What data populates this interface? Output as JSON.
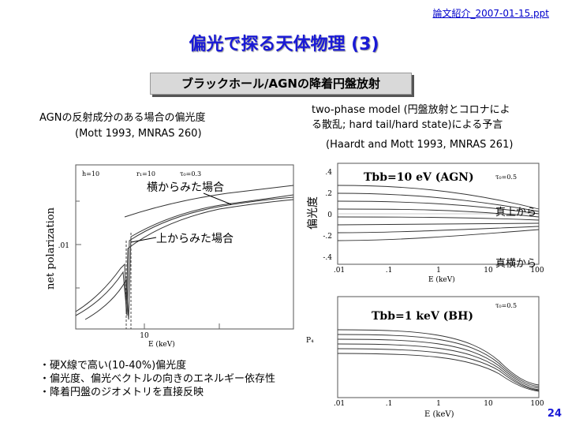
{
  "header": {
    "file_label": "論文紹介_2007-01-15.ppt"
  },
  "slide": {
    "title": "偏光で探る天体物理 (3)",
    "subtitle": "ブラックホール/AGNの降着円盤放射",
    "left_caption": "AGNの反射成分のある場合の偏光度",
    "left_ref": "(Mott 1993, MNRAS 260)",
    "right_caption_line1": "two-phase model (円盤放射とコロナによ",
    "right_caption_line2": "る散乱; hard tail/hard state)による予言",
    "right_ref": "(Haardt and Mott 1993, MNRAS 261)",
    "page_number": "24"
  },
  "left_figure": {
    "ylabel": "net polarization",
    "params": [
      "h=10",
      "r₁=10",
      "τ₀=0.3"
    ],
    "ytick": ".01",
    "xtick": "10",
    "xlabel": "E (keV)",
    "annotation_side": "横からみた場合",
    "annotation_top": "上からみた場合"
  },
  "right_top_figure": {
    "label": "Tbb=10 eV (AGN)",
    "param": "τ₀=0.5",
    "ylabel": "偏光度",
    "yticks": [
      ".4",
      ".2",
      "0",
      "-.2",
      "-.4"
    ],
    "xticks": [
      ".01",
      ".1",
      "1",
      "10",
      "100"
    ],
    "xlabel": "E (keV)",
    "annotation_top": "真上から",
    "annotation_side": "真横から"
  },
  "right_bottom_figure": {
    "label": "Tbb=1 keV (BH)",
    "param": "τ₀=0.5",
    "yaxis_fragment": "P₄",
    "xticks": [
      ".01",
      ".1",
      "1",
      "10",
      "100"
    ],
    "xlabel": "E (keV)"
  },
  "bullets": [
    "・硬X線で高い(10-40%)偏光度",
    "・偏光度、偏光ベクトルの向きのエネルギー依存性",
    "・降着円盤のジオメトリを直接反映"
  ],
  "colors": {
    "title": "#1a1ad6",
    "header_link": "#0000cc",
    "subtitle_bg": "#d9d9d9"
  }
}
